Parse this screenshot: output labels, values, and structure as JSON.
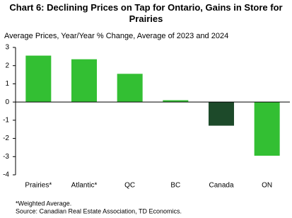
{
  "chart_data": {
    "type": "bar",
    "title": "Chart 6: Declining Prices on Tap for Ontario, Gains in Store for Prairies",
    "subtitle": "Average Prices, Year/Year % Change, Average of 2023 and 2024",
    "categories": [
      "Prairies*",
      "Atlantic*",
      "QC",
      "BC",
      "Canada",
      "ON"
    ],
    "values": [
      2.55,
      2.35,
      1.55,
      0.1,
      -1.3,
      -2.95
    ],
    "colors": [
      "#33bf33",
      "#33bf33",
      "#33bf33",
      "#33bf33",
      "#1d4a2a",
      "#33bf33"
    ],
    "ylim": [
      -4,
      3
    ],
    "yticks": [
      -4,
      -3,
      -2,
      -1,
      0,
      1,
      2,
      3
    ],
    "notes": [
      "*Weighted Average.",
      "Source: Canadian Real Estate Association, TD Economics."
    ]
  }
}
